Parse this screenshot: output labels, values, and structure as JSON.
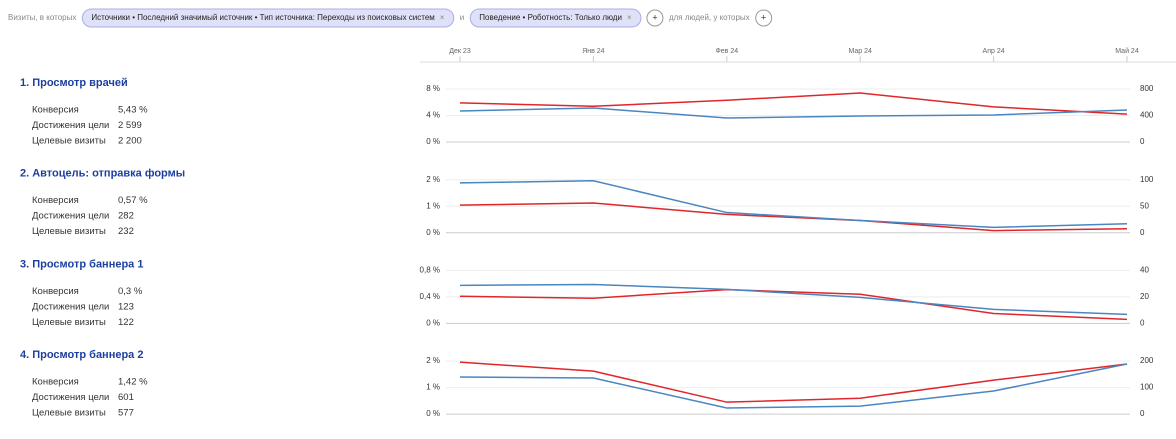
{
  "filters": {
    "prefix": "Визиты, в которых",
    "chips": [
      "Источники • Последний значимый источник • Тип источника: Переходы из поисковых систем",
      "Поведение • Роботность: Только люди"
    ],
    "conjunction": "и",
    "suffix": "для людей, у которых"
  },
  "x_axis": {
    "categories": [
      "Дек 23",
      "Янв 24",
      "Фев 24",
      "Мар 24",
      "Апр 24",
      "Май 24"
    ]
  },
  "goals": [
    {
      "title": "1. Просмотр врачей",
      "metrics": [
        {
          "label": "Конверсия",
          "value": "5,43 %"
        },
        {
          "label": "Достижения цели",
          "value": "2 599"
        },
        {
          "label": "Целевые визиты",
          "value": "2 200"
        }
      ],
      "chart": {
        "type": "line",
        "ylim": [
          0,
          8
        ],
        "yticks": [
          {
            "value": 0,
            "label": "0 %"
          },
          {
            "value": 4,
            "label": "4 %"
          },
          {
            "value": 8,
            "label": "8 %"
          }
        ],
        "y2lim": [
          0,
          800
        ],
        "y2ticks": [
          0,
          400,
          800
        ],
        "series": [
          {
            "color": "#e0262a",
            "values": [
              5.9,
              5.4,
              6.3,
              7.4,
              5.3,
              4.2
            ]
          },
          {
            "color": "#4a86c0",
            "axis": "y2",
            "values": [
              468,
              513,
              362,
              392,
              408,
              483
            ]
          }
        ]
      }
    },
    {
      "title": "2. Автоцель: отправка формы",
      "metrics": [
        {
          "label": "Конверсия",
          "value": "0,57 %"
        },
        {
          "label": "Достижения цели",
          "value": "282"
        },
        {
          "label": "Целевые визиты",
          "value": "232"
        }
      ],
      "chart": {
        "type": "line",
        "ylim": [
          0,
          2
        ],
        "yticks": [
          {
            "value": 0,
            "label": "0 %"
          },
          {
            "value": 1,
            "label": "1 %"
          },
          {
            "value": 2,
            "label": "2 %"
          }
        ],
        "y2lim": [
          0,
          100
        ],
        "y2ticks": [
          0,
          50,
          100
        ],
        "series": [
          {
            "color": "#e0262a",
            "values": [
              1.04,
              1.12,
              0.69,
              0.46,
              0.08,
              0.15
            ]
          },
          {
            "color": "#4a86c0",
            "axis": "y2",
            "values": [
              94,
              98,
              38,
              23,
              10,
              17
            ]
          }
        ]
      }
    },
    {
      "title": "3. Просмотр баннера 1",
      "metrics": [
        {
          "label": "Конверсия",
          "value": "0,3 %"
        },
        {
          "label": "Достижения цели",
          "value": "123"
        },
        {
          "label": "Целевые визиты",
          "value": "122"
        }
      ],
      "chart": {
        "type": "line",
        "ylim": [
          0,
          0.8
        ],
        "yticks": [
          {
            "value": 0,
            "label": "0 %"
          },
          {
            "value": 0.4,
            "label": "0,4 %"
          },
          {
            "value": 0.8,
            "label": "0,8 %"
          }
        ],
        "y2lim": [
          0,
          40
        ],
        "y2ticks": [
          0,
          20,
          40
        ],
        "series": [
          {
            "color": "#e0262a",
            "values": [
              0.41,
              0.38,
              0.51,
              0.44,
              0.15,
              0.06
            ]
          },
          {
            "color": "#4a86c0",
            "axis": "y2",
            "values": [
              28.7,
              29.4,
              25.7,
              19.6,
              10.6,
              6.8
            ]
          }
        ]
      }
    },
    {
      "title": "4. Просмотр баннера 2",
      "metrics": [
        {
          "label": "Конверсия",
          "value": "1,42 %"
        },
        {
          "label": "Достижения цели",
          "value": "601"
        },
        {
          "label": "Целевые визиты",
          "value": "577"
        }
      ],
      "chart": {
        "type": "line",
        "ylim": [
          0,
          2
        ],
        "yticks": [
          {
            "value": 0,
            "label": "0 %"
          },
          {
            "value": 1,
            "label": "1 %"
          },
          {
            "value": 2,
            "label": "2 %"
          }
        ],
        "y2lim": [
          0,
          200
        ],
        "y2ticks": [
          0,
          100,
          200
        ],
        "series": [
          {
            "color": "#e0262a",
            "values": [
              1.96,
              1.62,
              0.45,
              0.6,
              1.28,
              1.89
            ]
          },
          {
            "color": "#4a86c0",
            "axis": "y2",
            "values": [
              140,
              136,
              23,
              30,
              87,
              189
            ]
          }
        ]
      }
    }
  ]
}
